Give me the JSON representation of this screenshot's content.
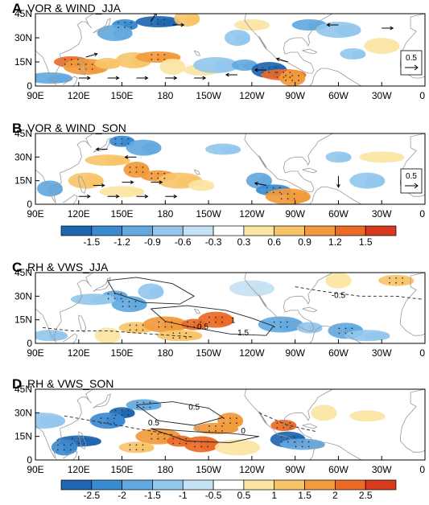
{
  "chart_data": [
    {
      "type": "heatmap",
      "panel_letter": "A",
      "title": "VOR & WIND_JJA",
      "y_ticks": [
        "45N",
        "30N",
        "15N",
        "0"
      ],
      "x_ticks": [
        "90E",
        "120E",
        "150E",
        "180",
        "150W",
        "120W",
        "90W",
        "60W",
        "30W",
        "0"
      ],
      "reference_vector": "0.5",
      "blobs": [
        {
          "lon": 152,
          "lat": 38,
          "value": -1.2
        },
        {
          "lon": 145,
          "lat": 33,
          "value": -0.9
        },
        {
          "lon": 175,
          "lat": 40,
          "value": -1.5
        },
        {
          "lon": 195,
          "lat": 42,
          "value": 0.9
        },
        {
          "lon": 115,
          "lat": 15,
          "value": 1.5
        },
        {
          "lon": 125,
          "lat": 12,
          "value": 1.2
        },
        {
          "lon": 140,
          "lat": 14,
          "value": 0.9
        },
        {
          "lon": 158,
          "lat": 16,
          "value": 0.9
        },
        {
          "lon": 175,
          "lat": 18,
          "value": 1.2
        },
        {
          "lon": 185,
          "lat": 12,
          "value": 0.6
        },
        {
          "lon": 205,
          "lat": 10,
          "value": 0.6
        },
        {
          "lon": 215,
          "lat": 13,
          "value": -0.6
        },
        {
          "lon": 235,
          "lat": 13,
          "value": -0.9
        },
        {
          "lon": 252,
          "lat": 10,
          "value": -1.5
        },
        {
          "lon": 262,
          "lat": 7,
          "value": 1.5
        },
        {
          "lon": 268,
          "lat": 5,
          "value": 1.2
        },
        {
          "lon": 280,
          "lat": 38,
          "value": -0.9
        },
        {
          "lon": 300,
          "lat": 35,
          "value": -0.6
        },
        {
          "lon": 310,
          "lat": 20,
          "value": -0.6
        },
        {
          "lon": 330,
          "lat": 25,
          "value": 0.6
        },
        {
          "lon": 100,
          "lat": 5,
          "value": -0.9
        },
        {
          "lon": 230,
          "lat": 30,
          "value": -0.6
        },
        {
          "lon": 240,
          "lat": 38,
          "value": 0.6
        }
      ],
      "wind_vectors": [
        {
          "lon": 120,
          "lat": 5,
          "u": 1,
          "v": 0
        },
        {
          "lon": 140,
          "lat": 5,
          "u": 1,
          "v": 0
        },
        {
          "lon": 160,
          "lat": 5,
          "u": 1,
          "v": 0
        },
        {
          "lon": 180,
          "lat": 5,
          "u": 1,
          "v": 0
        },
        {
          "lon": 200,
          "lat": 5,
          "u": 1,
          "v": 0
        },
        {
          "lon": 230,
          "lat": 7,
          "u": -1,
          "v": 0
        },
        {
          "lon": 250,
          "lat": 10,
          "u": -1,
          "v": 0
        },
        {
          "lon": 265,
          "lat": 15,
          "u": -1,
          "v": 0.3
        },
        {
          "lon": 125,
          "lat": 18,
          "u": 1,
          "v": 0.3
        },
        {
          "lon": 170,
          "lat": 40,
          "u": 0.5,
          "v": 0.8
        },
        {
          "lon": 185,
          "lat": 38,
          "u": 1,
          "v": 0
        },
        {
          "lon": 300,
          "lat": 38,
          "u": -1,
          "v": 0
        },
        {
          "lon": 330,
          "lat": 36,
          "u": 1,
          "v": 0
        }
      ]
    },
    {
      "type": "heatmap",
      "panel_letter": "B",
      "title": "VOR & WIND_SON",
      "y_ticks": [
        "45N",
        "30N",
        "15N",
        "0"
      ],
      "x_ticks": [
        "90E",
        "120E",
        "150E",
        "180",
        "150W",
        "120W",
        "90W",
        "60W",
        "30W",
        "0"
      ],
      "reference_vector": "0.5",
      "blobs": [
        {
          "lon": 150,
          "lat": 40,
          "value": -1.2
        },
        {
          "lon": 165,
          "lat": 36,
          "value": -0.9
        },
        {
          "lon": 140,
          "lat": 28,
          "value": 0.9
        },
        {
          "lon": 160,
          "lat": 22,
          "value": 1.2
        },
        {
          "lon": 175,
          "lat": 18,
          "value": 1.2
        },
        {
          "lon": 190,
          "lat": 15,
          "value": 0.9
        },
        {
          "lon": 205,
          "lat": 12,
          "value": 0.6
        },
        {
          "lon": 125,
          "lat": 15,
          "value": 0.9
        },
        {
          "lon": 150,
          "lat": 8,
          "value": 0.6
        },
        {
          "lon": 245,
          "lat": 15,
          "value": -0.9
        },
        {
          "lon": 255,
          "lat": 9,
          "value": -1.2
        },
        {
          "lon": 265,
          "lat": 5,
          "value": 1.2
        },
        {
          "lon": 300,
          "lat": 30,
          "value": -0.6
        },
        {
          "lon": 320,
          "lat": 15,
          "value": -0.6
        },
        {
          "lon": 330,
          "lat": 30,
          "value": 0.6
        },
        {
          "lon": 100,
          "lat": 10,
          "value": -0.9
        },
        {
          "lon": 220,
          "lat": 35,
          "value": -0.6
        }
      ],
      "wind_vectors": [
        {
          "lon": 120,
          "lat": 5,
          "u": 1,
          "v": 0
        },
        {
          "lon": 140,
          "lat": 5,
          "u": 1,
          "v": 0
        },
        {
          "lon": 160,
          "lat": 5,
          "u": 1,
          "v": 0
        },
        {
          "lon": 180,
          "lat": 5,
          "u": 1,
          "v": 0
        },
        {
          "lon": 130,
          "lat": 12,
          "u": 1,
          "v": 0
        },
        {
          "lon": 150,
          "lat": 14,
          "u": 1,
          "v": 0
        },
        {
          "lon": 170,
          "lat": 14,
          "u": 1,
          "v": 0
        },
        {
          "lon": 140,
          "lat": 35,
          "u": -1,
          "v": 0
        },
        {
          "lon": 160,
          "lat": 30,
          "u": -1,
          "v": 0
        },
        {
          "lon": 250,
          "lat": 12,
          "u": -1,
          "v": 0.2
        },
        {
          "lon": 300,
          "lat": 18,
          "u": 0,
          "v": -1
        }
      ]
    },
    {
      "type": "heatmap",
      "panel_letter": "C",
      "title": "RH & VWS_JJA",
      "y_ticks": [
        "45N",
        "30N",
        "15N",
        "0"
      ],
      "x_ticks": [
        "90E",
        "120E",
        "150E",
        "180",
        "150W",
        "120W",
        "90W",
        "60W",
        "30W",
        "0"
      ],
      "contour_labels": [
        {
          "text": "1",
          "lon": 227,
          "lat": 13
        },
        {
          "text": "0.5",
          "lon": 206,
          "lat": 9
        },
        {
          "text": "1.5",
          "lon": 234,
          "lat": 5
        },
        {
          "text": "-0.5",
          "lon": 300,
          "lat": 29
        }
      ],
      "blobs": [
        {
          "lon": 145,
          "lat": 30,
          "value": -1.5
        },
        {
          "lon": 155,
          "lat": 25,
          "value": -1.5
        },
        {
          "lon": 130,
          "lat": 28,
          "value": -1
        },
        {
          "lon": 170,
          "lat": 33,
          "value": -1
        },
        {
          "lon": 160,
          "lat": 10,
          "value": 1.5
        },
        {
          "lon": 180,
          "lat": 12,
          "value": 2
        },
        {
          "lon": 200,
          "lat": 12,
          "value": 2.5
        },
        {
          "lon": 215,
          "lat": 15,
          "value": 2.5
        },
        {
          "lon": 190,
          "lat": 5,
          "value": 1.5
        },
        {
          "lon": 140,
          "lat": 5,
          "value": 1
        },
        {
          "lon": 100,
          "lat": 5,
          "value": -1
        },
        {
          "lon": 260,
          "lat": 12,
          "value": -1.5
        },
        {
          "lon": 280,
          "lat": 10,
          "value": -1
        },
        {
          "lon": 305,
          "lat": 8,
          "value": -1.5
        },
        {
          "lon": 320,
          "lat": 5,
          "value": -1
        },
        {
          "lon": 300,
          "lat": 40,
          "value": 1
        },
        {
          "lon": 340,
          "lat": 40,
          "value": 1.5
        },
        {
          "lon": 240,
          "lat": 35,
          "value": -0.5
        }
      ],
      "solid_contours": [
        [
          [
            170,
            22
          ],
          [
            195,
            24
          ],
          [
            222,
            21
          ],
          [
            240,
            16
          ],
          [
            255,
            11
          ],
          [
            250,
            5
          ],
          [
            225,
            6
          ],
          [
            200,
            10
          ],
          [
            180,
            14
          ],
          [
            170,
            22
          ]
        ],
        [
          [
            140,
            40
          ],
          [
            160,
            42
          ],
          [
            185,
            38
          ],
          [
            200,
            30
          ],
          [
            190,
            25
          ],
          [
            165,
            26
          ],
          [
            145,
            32
          ],
          [
            140,
            40
          ]
        ]
      ],
      "dashed_contours": [
        [
          [
            95,
            10
          ],
          [
            115,
            8
          ],
          [
            140,
            8
          ],
          [
            170,
            6
          ],
          [
            200,
            4
          ]
        ],
        [
          [
            270,
            36
          ],
          [
            290,
            33
          ],
          [
            315,
            30
          ],
          [
            340,
            30
          ],
          [
            358,
            28
          ]
        ]
      ]
    },
    {
      "type": "heatmap",
      "panel_letter": "D",
      "title": "RH & VWS_SON",
      "y_ticks": [
        "45N",
        "30N",
        "15N",
        "0"
      ],
      "x_ticks": [
        "90E",
        "120E",
        "150E",
        "180",
        "150W",
        "120W",
        "90W",
        "60W",
        "30W",
        "0"
      ],
      "contour_labels": [
        {
          "text": "0.5",
          "lon": 200,
          "lat": 32
        },
        {
          "text": "0.5",
          "lon": 172,
          "lat": 22
        },
        {
          "text": "0",
          "lon": 234,
          "lat": 17
        }
      ],
      "blobs": [
        {
          "lon": 150,
          "lat": 30,
          "value": -2.5
        },
        {
          "lon": 140,
          "lat": 25,
          "value": -2
        },
        {
          "lon": 120,
          "lat": 12,
          "value": -2.5
        },
        {
          "lon": 110,
          "lat": 8,
          "value": -2
        },
        {
          "lon": 165,
          "lat": 35,
          "value": -1.5
        },
        {
          "lon": 175,
          "lat": 15,
          "value": 2
        },
        {
          "lon": 190,
          "lat": 12,
          "value": 2.5
        },
        {
          "lon": 205,
          "lat": 10,
          "value": 2.5
        },
        {
          "lon": 215,
          "lat": 20,
          "value": 2
        },
        {
          "lon": 225,
          "lat": 25,
          "value": 2
        },
        {
          "lon": 160,
          "lat": 8,
          "value": 1.5
        },
        {
          "lon": 230,
          "lat": 8,
          "value": 1
        },
        {
          "lon": 262,
          "lat": 22,
          "value": 2.5
        },
        {
          "lon": 265,
          "lat": 13,
          "value": -2.5
        },
        {
          "lon": 275,
          "lat": 10,
          "value": -1.5
        },
        {
          "lon": 290,
          "lat": 30,
          "value": 1
        },
        {
          "lon": 320,
          "lat": 28,
          "value": 1
        },
        {
          "lon": 95,
          "lat": 25,
          "value": -1
        }
      ],
      "solid_contours": [
        [
          [
            160,
            35
          ],
          [
            185,
            37
          ],
          [
            210,
            33
          ],
          [
            220,
            27
          ],
          [
            200,
            22
          ],
          [
            175,
            25
          ],
          [
            160,
            35
          ]
        ],
        [
          [
            170,
            20
          ],
          [
            200,
            18
          ],
          [
            225,
            17
          ],
          [
            245,
            15
          ],
          [
            225,
            11
          ],
          [
            195,
            12
          ],
          [
            170,
            20
          ]
        ]
      ],
      "dashed_contours": [
        [
          [
            110,
            28
          ],
          [
            135,
            24
          ],
          [
            160,
            20
          ],
          [
            185,
            16
          ]
        ],
        [
          [
            245,
            30
          ],
          [
            265,
            22
          ],
          [
            285,
            18
          ]
        ]
      ]
    }
  ],
  "colorbars": [
    {
      "labels": [
        "-1.5",
        "-1.2",
        "-0.9",
        "-0.6",
        "-0.3",
        "0.3",
        "0.6",
        "0.9",
        "1.2",
        "1.5"
      ],
      "colors": [
        "#1f66b0",
        "#3a8ad0",
        "#63a9e0",
        "#93c7ec",
        "#c5e2f4",
        "#ffffff",
        "#fbe5a4",
        "#f7c46a",
        "#f29a3c",
        "#ea6a26",
        "#d83a1e"
      ]
    },
    {
      "labels": [
        "-2.5",
        "-2",
        "-1.5",
        "-1",
        "-0.5",
        "0.5",
        "1",
        "1.5",
        "2",
        "2.5"
      ],
      "colors": [
        "#1f66b0",
        "#3a8ad0",
        "#63a9e0",
        "#93c7ec",
        "#c5e2f4",
        "#ffffff",
        "#fbe5a4",
        "#f7c46a",
        "#f29a3c",
        "#ea6a26",
        "#d83a1e"
      ]
    }
  ]
}
